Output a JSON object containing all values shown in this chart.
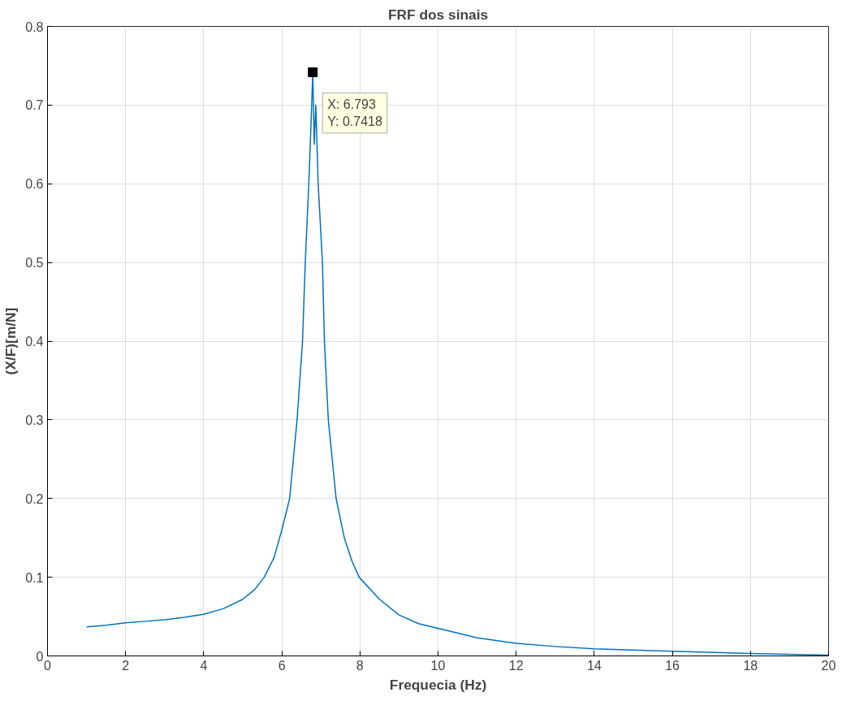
{
  "chart_data": {
    "type": "line",
    "title": "FRF dos sinais",
    "xlabel": "Frequecia (Hz)",
    "ylabel": "(X/F)[m/N]",
    "x": [
      1,
      1.5,
      2,
      2.5,
      3,
      3.5,
      4,
      4.5,
      5,
      5.3,
      5.55,
      5.8,
      6.0,
      6.2,
      6.39,
      6.53,
      6.6,
      6.69,
      6.75,
      6.793,
      6.83,
      6.87,
      6.93,
      7.04,
      7.09,
      7.19,
      7.39,
      7.6,
      7.8,
      7.98,
      8.5,
      9,
      9.5,
      10,
      11,
      12,
      13,
      14,
      16,
      18,
      20
    ],
    "series": [
      {
        "color": "#0072bd",
        "values": [
          0.037,
          0.039,
          0.042,
          0.044,
          0.046,
          0.049,
          0.053,
          0.06,
          0.072,
          0.084,
          0.1,
          0.125,
          0.16,
          0.2,
          0.3,
          0.4,
          0.5,
          0.6,
          0.68,
          0.7418,
          0.65,
          0.7,
          0.6,
          0.5,
          0.4,
          0.3,
          0.2,
          0.15,
          0.12,
          0.1,
          0.072,
          0.052,
          0.041,
          0.035,
          0.023,
          0.016,
          0.012,
          0.009,
          0.006,
          0.003,
          0.001
        ]
      }
    ],
    "annotations": [
      {
        "text": "X: 6.793\nY: 0.7418",
        "x": 6.793,
        "y": 0.7418
      }
    ],
    "xlim": [
      0,
      20
    ],
    "ylim": [
      0,
      0.8
    ],
    "xticks": [
      0,
      2,
      4,
      6,
      8,
      10,
      12,
      14,
      16,
      18,
      20
    ],
    "yticks": [
      0,
      0.1,
      0.2,
      0.3,
      0.4,
      0.5,
      0.6,
      0.7,
      0.8
    ],
    "grid": true
  }
}
